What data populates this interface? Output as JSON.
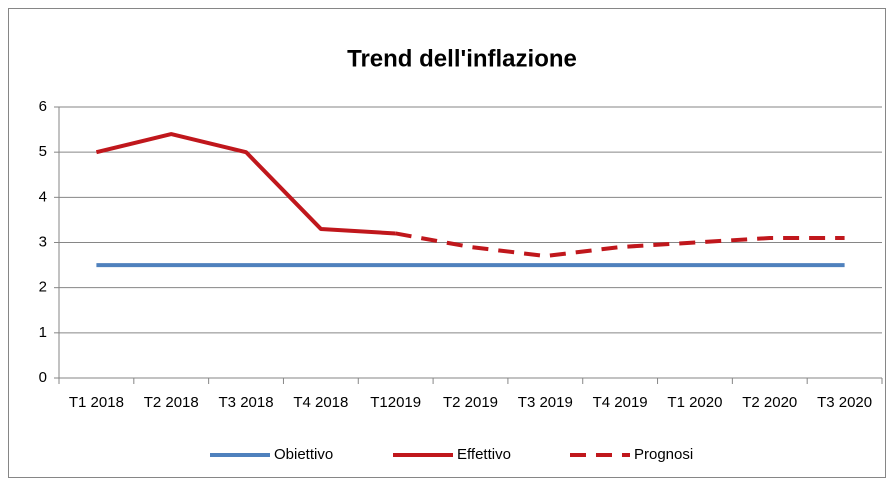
{
  "chart_data": {
    "type": "line",
    "title": "Trend dell'inflazione",
    "categories": [
      "T1 2018",
      "T2 2018",
      "T3 2018",
      "T4 2018",
      "T12019",
      "T2 2019",
      "T3 2019",
      "T4 2019",
      "T1 2020",
      "T2 2020",
      "T3 2020"
    ],
    "series": [
      {
        "name": "Obiettivo",
        "color": "#4f81bd",
        "dashed": false,
        "values": [
          2.5,
          2.5,
          2.5,
          2.5,
          2.5,
          2.5,
          2.5,
          2.5,
          2.5,
          2.5,
          2.5
        ]
      },
      {
        "name": "Effettivo",
        "color": "#c0171c",
        "dashed": false,
        "values": [
          5,
          5.4,
          5,
          3.3,
          3.2,
          null,
          null,
          null,
          null,
          null,
          null
        ]
      },
      {
        "name": "Prognosi",
        "color": "#c0171c",
        "dashed": true,
        "values": [
          null,
          null,
          null,
          null,
          3.2,
          2.9,
          2.7,
          2.9,
          3.0,
          3.1,
          3.1
        ]
      }
    ],
    "ylim": [
      0,
      6
    ],
    "yticks": [
      0,
      1,
      2,
      3,
      4,
      5,
      6
    ],
    "grid": true,
    "legend": "bottom"
  }
}
